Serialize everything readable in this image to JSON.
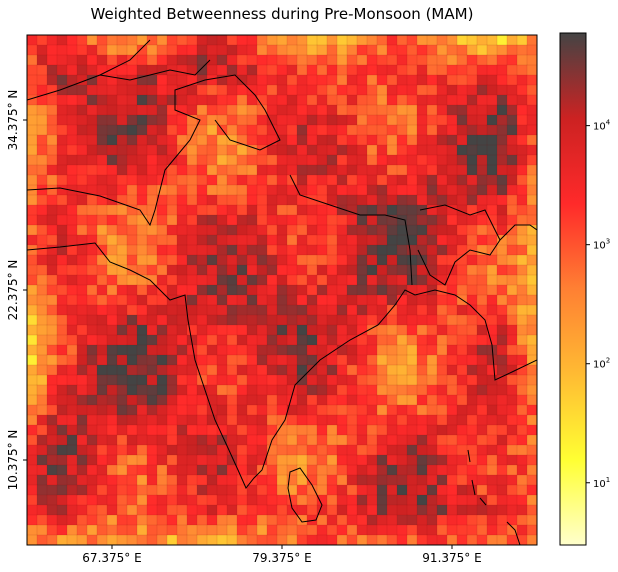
{
  "title": "Weighted Betweenness during Pre-Monsoon (MAM)",
  "map": {
    "x_ticks": [
      "67.375° E",
      "79.375° E",
      "91.375° E"
    ],
    "y_ticks": [
      "34.375° N",
      "22.375° N",
      "10.375° N"
    ],
    "grid": {
      "cols": 51,
      "rows": 51
    }
  },
  "colorbar": {
    "scale": "log",
    "range": [
      3,
      60000
    ],
    "ticks": [
      {
        "base": "10",
        "exp": "1",
        "value": 10
      },
      {
        "base": "10",
        "exp": "2",
        "value": 100
      },
      {
        "base": "10",
        "exp": "3",
        "value": 1000
      },
      {
        "base": "10",
        "exp": "4",
        "value": 10000
      }
    ],
    "colormap": [
      "#ffffcc",
      "#ffff33",
      "#ffbb33",
      "#ff8033",
      "#ff2a2a",
      "#cc2222",
      "#444444"
    ]
  },
  "colors": {
    "coastline": "#000000",
    "cell_edge": "#7a0000"
  }
}
